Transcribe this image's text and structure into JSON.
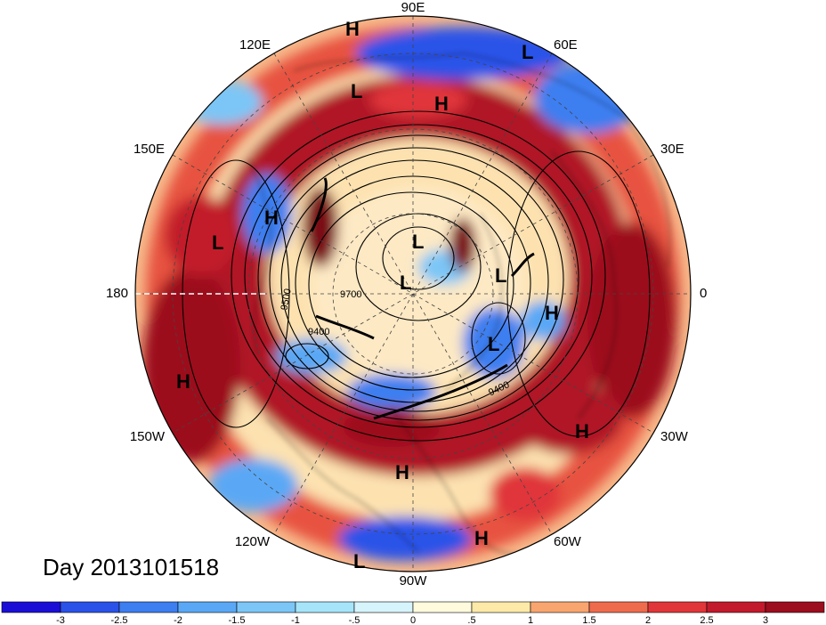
{
  "title": "Day 2013101518",
  "longitude_labels": [
    {
      "key": "90e",
      "text": "90E"
    },
    {
      "key": "60e",
      "text": "60E"
    },
    {
      "key": "30e",
      "text": "30E"
    },
    {
      "key": "0",
      "text": "0"
    },
    {
      "key": "30w",
      "text": "30W"
    },
    {
      "key": "60w",
      "text": "60W"
    },
    {
      "key": "90w",
      "text": "90W"
    },
    {
      "key": "120w",
      "text": "120W"
    },
    {
      "key": "150w",
      "text": "150W"
    },
    {
      "key": "180",
      "text": "180"
    },
    {
      "key": "150e",
      "text": "150E"
    },
    {
      "key": "120e",
      "text": "120E"
    }
  ],
  "pressure_centers": [
    {
      "text": "H"
    },
    {
      "text": "L"
    },
    {
      "text": "L"
    },
    {
      "text": "H"
    },
    {
      "text": "H"
    },
    {
      "text": "L"
    },
    {
      "text": "L"
    },
    {
      "text": "L"
    },
    {
      "text": "L"
    },
    {
      "text": "H"
    },
    {
      "text": "L"
    },
    {
      "text": "H"
    },
    {
      "text": "H"
    },
    {
      "text": "H"
    },
    {
      "text": "H"
    },
    {
      "text": "L"
    }
  ],
  "contour_labels": [
    {
      "text": "9500"
    },
    {
      "text": "9400"
    },
    {
      "text": "9400"
    },
    {
      "text": "9700"
    }
  ],
  "colorbar": {
    "colors": [
      "#1a0ed6",
      "#2a52e8",
      "#3d7ef0",
      "#5aa8f5",
      "#7cc6f7",
      "#a6e4fa",
      "#d6f4fb",
      "#fffbdc",
      "#fde9a8",
      "#f8a56f",
      "#ef6b4e",
      "#e0363a",
      "#c21a2c",
      "#9c0d1e"
    ],
    "ticks": [
      "-3",
      "-2.5",
      "-2",
      "-1.5",
      "-1",
      "-.5",
      "0",
      ".5",
      "1",
      "1.5",
      "2",
      "2.5",
      "3"
    ]
  }
}
